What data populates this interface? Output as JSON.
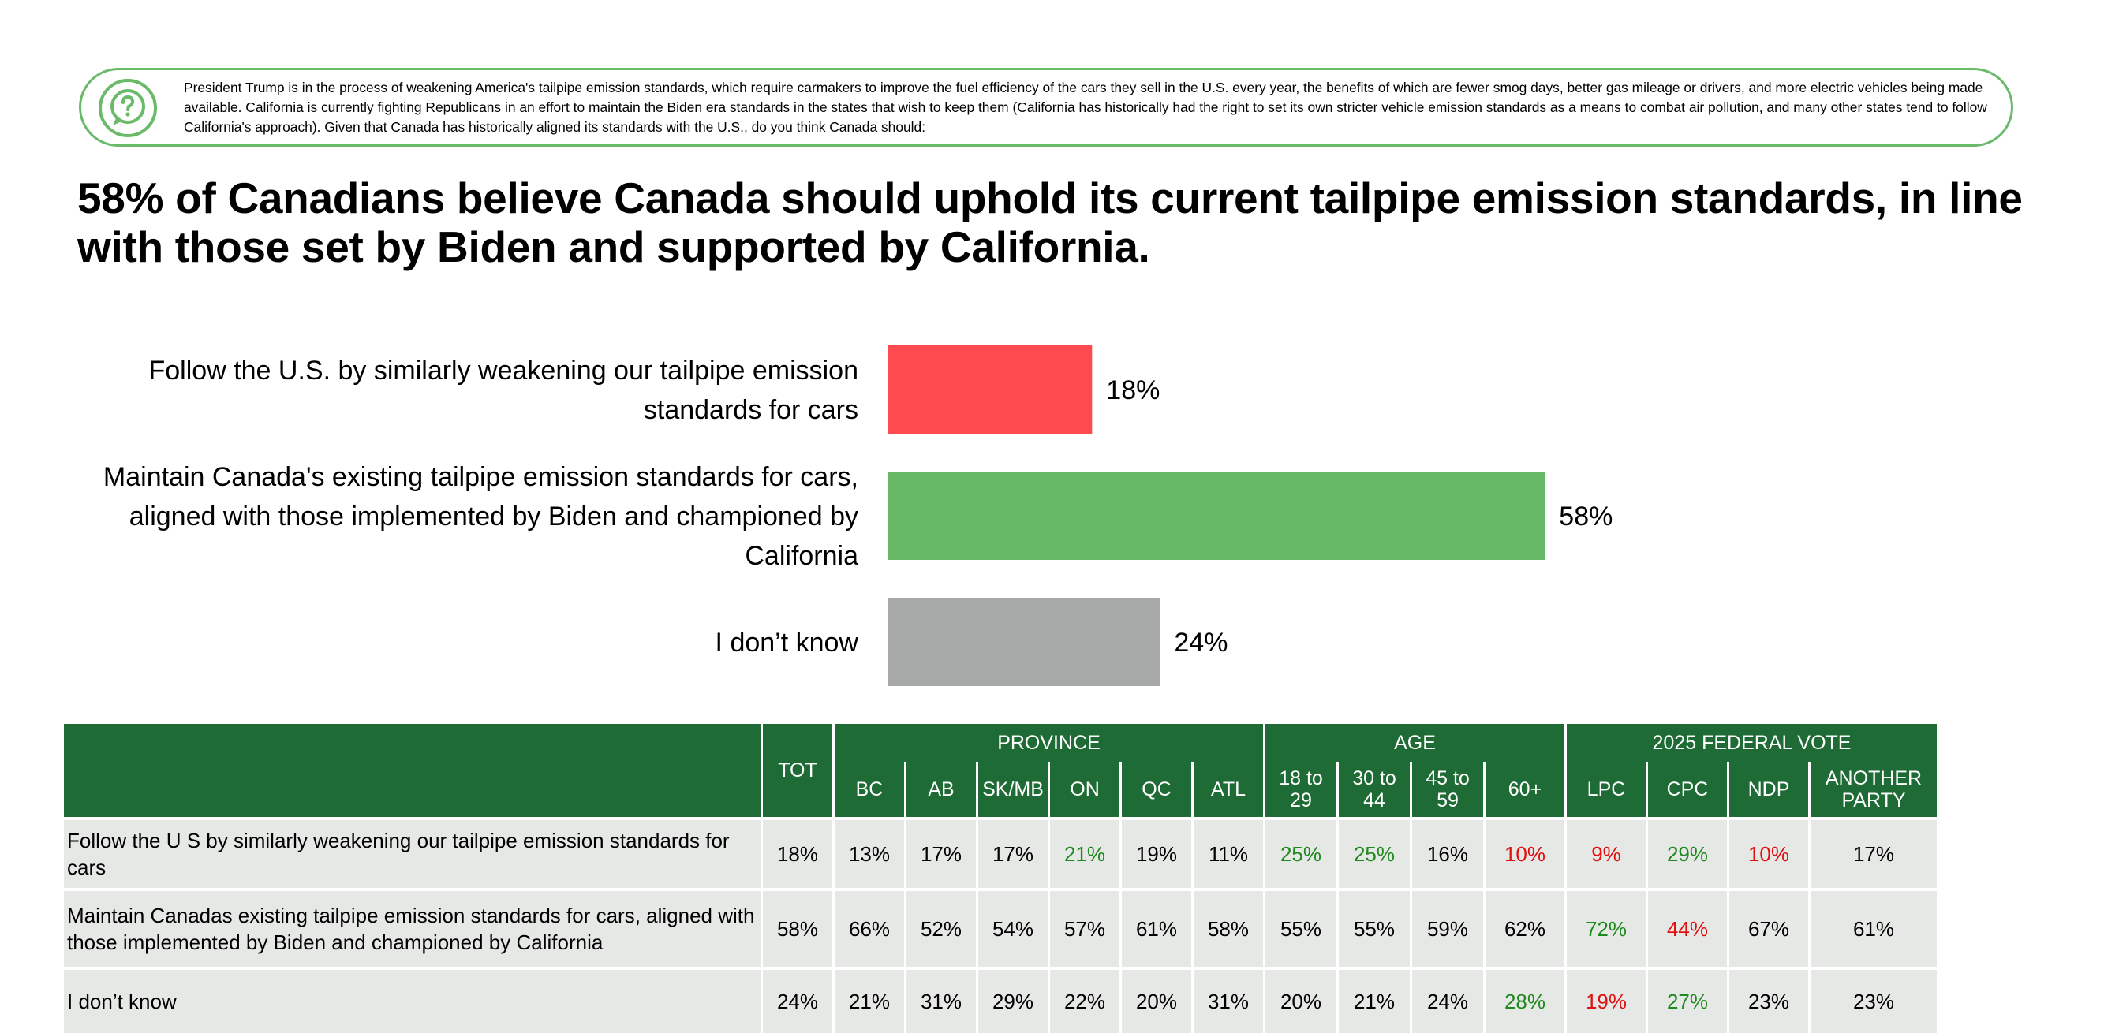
{
  "question": {
    "text": "President Trump is in the process of weakening America's tailpipe emission standards, which require carmakers to improve the fuel efficiency of the cars they sell in the U.S. every year, the benefits of which are fewer smog days, better gas mileage or drivers, and more electric vehicles being made available. California is currently fighting Republicans in an effort to maintain the Biden era standards in the states that wish to keep them (California has historically had the right to set its own stricter vehicle emission standards as a means to combat air pollution, and many other states tend to follow California's approach). Given that Canada has historically aligned its standards with the U.S., do you think Canada should:",
    "icon": "question-chat-icon"
  },
  "headline": "58% of Canadians believe Canada should uphold its current tailpipe emission standards, in line with those set by Biden and supported by California.",
  "chart_data": {
    "type": "bar",
    "orientation": "horizontal",
    "categories": [
      "Follow the U.S. by similarly weakening our tailpipe emission standards for cars",
      "Maintain Canada's existing tailpipe emission standards for cars, aligned with those implemented by Biden and championed by California",
      "I don’t know"
    ],
    "values": [
      18,
      58,
      24
    ],
    "value_labels": [
      "18%",
      "58%",
      "24%"
    ],
    "colors": [
      "#ff4a50",
      "#66b866",
      "#a7a9a9"
    ],
    "xlim": [
      0,
      100
    ],
    "grid": false,
    "legend": "none"
  },
  "table": {
    "tot_label": "TOT",
    "groups": [
      {
        "label": "PROVINCE",
        "cols": [
          "BC",
          "AB",
          "SK/MB",
          "ON",
          "QC",
          "ATL"
        ]
      },
      {
        "label": "AGE",
        "cols": [
          "18 to 29",
          "30 to 44",
          "45 to 59",
          "60+"
        ]
      },
      {
        "label": "2025 FEDERAL VOTE",
        "cols": [
          "LPC",
          "CPC",
          "NDP",
          "ANOTHER PARTY"
        ]
      }
    ],
    "rows": [
      {
        "label": "Follow the U S  by similarly weakening our tailpipe emission standards for cars",
        "values": [
          "18%",
          "13%",
          "17%",
          "17%",
          "21%",
          "19%",
          "11%",
          "25%",
          "25%",
          "16%",
          "10%",
          "9%",
          "29%",
          "10%",
          "17%"
        ],
        "status": [
          "neu",
          "neu",
          "neu",
          "neu",
          "pos",
          "neu",
          "neu",
          "pos",
          "pos",
          "neu",
          "neg",
          "neg",
          "pos",
          "neg",
          "neu"
        ]
      },
      {
        "label": "Maintain Canadas existing tailpipe emission standards for cars, aligned with those implemented by Biden and championed by California",
        "values": [
          "58%",
          "66%",
          "52%",
          "54%",
          "57%",
          "61%",
          "58%",
          "55%",
          "55%",
          "59%",
          "62%",
          "72%",
          "44%",
          "67%",
          "61%"
        ],
        "status": [
          "neu",
          "neu",
          "neu",
          "neu",
          "neu",
          "neu",
          "neu",
          "neu",
          "neu",
          "neu",
          "neu",
          "pos",
          "neg",
          "neu",
          "neu"
        ]
      },
      {
        "label": "I don’t know",
        "values": [
          "24%",
          "21%",
          "31%",
          "29%",
          "22%",
          "20%",
          "31%",
          "20%",
          "21%",
          "24%",
          "28%",
          "19%",
          "27%",
          "23%",
          "23%"
        ],
        "status": [
          "neu",
          "neu",
          "neu",
          "neu",
          "neu",
          "neu",
          "neu",
          "neu",
          "neu",
          "neu",
          "pos",
          "neg",
          "pos",
          "neu",
          "neu"
        ]
      }
    ],
    "status_colors": {
      "pos": "#1e8a1e",
      "neg": "#e01010",
      "neu": "#000000"
    },
    "header_color": "#1e6b35",
    "row_color": "#e6e8e6"
  }
}
